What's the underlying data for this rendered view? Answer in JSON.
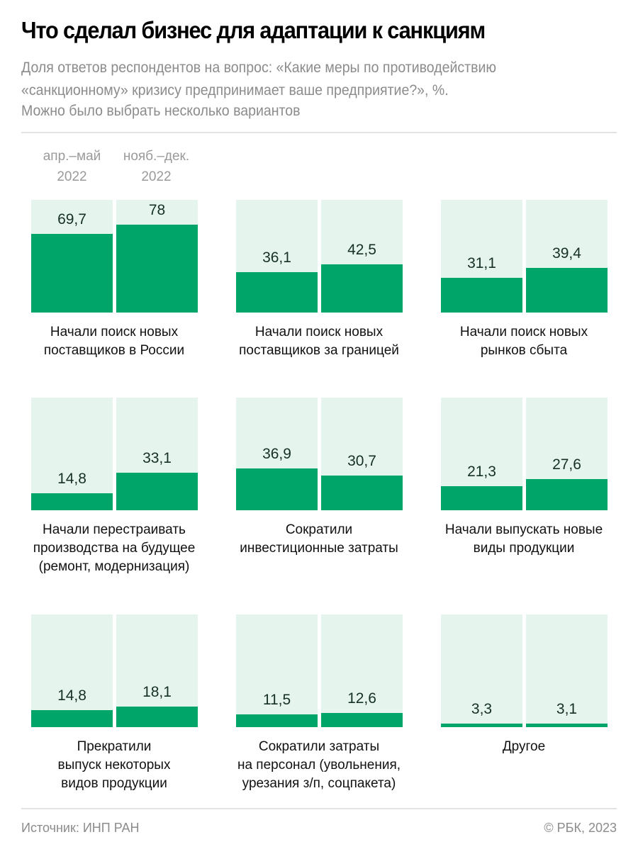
{
  "header": {
    "title": "Что сделал бизнес для адаптации к санкциям",
    "subtitle": "Доля ответов респондентов на вопрос: «Какие меры по противодействию «санкционному» кризису предпринимает ваше предприятие?», %.",
    "note": "Можно было выбрать несколько вариантов"
  },
  "footer": {
    "source": "Источник: ИНП РАН",
    "copyright": "© РБК, 2023"
  },
  "colors": {
    "bar": "#00a569",
    "bar_background": "#e5f5ee",
    "label": "#163026",
    "muted_text": "#8c8c8c"
  },
  "chart_data": {
    "type": "bar",
    "title": "Что сделал бизнес для адаптации к санкциям",
    "ylabel": "%",
    "ylim": [
      0,
      100
    ],
    "grid": false,
    "legend_position": "top-left",
    "series_names": [
      "апр.–май 2022",
      "нояб.–дек. 2022"
    ],
    "legend": [
      {
        "line1": "апр.–май",
        "line2": "2022"
      },
      {
        "line1": "нояб.–дек.",
        "line2": "2022"
      }
    ],
    "categories": [
      "Начали поиск новых поставщиков в России",
      "Начали поиск новых поставщиков за границей",
      "Начали поиск новых рынков сбыта",
      "Начали перестраивать производства на будущее (ремонт, модернизация)",
      "Сократили инвестиционные затраты",
      "Начали выпускать новые виды продукции",
      "Прекратили выпуск некоторых видов продукции",
      "Сократили затраты на персонал (увольнения, урезания з/п, соцпакета)",
      "Другое"
    ],
    "panels": [
      {
        "label_lines": [
          "Начали поиск новых",
          "поставщиков в России"
        ],
        "values": [
          69.7,
          78
        ],
        "value_labels": [
          "69,7",
          "78"
        ]
      },
      {
        "label_lines": [
          "Начали поиск новых",
          "поставщиков за границей"
        ],
        "values": [
          36.1,
          42.5
        ],
        "value_labels": [
          "36,1",
          "42,5"
        ]
      },
      {
        "label_lines": [
          "Начали поиск новых",
          "рынков сбыта"
        ],
        "values": [
          31.1,
          39.4
        ],
        "value_labels": [
          "31,1",
          "39,4"
        ]
      },
      {
        "label_lines": [
          "Начали перестраивать",
          "производства на будущее",
          "(ремонт, модернизация)"
        ],
        "values": [
          14.8,
          33.1
        ],
        "value_labels": [
          "14,8",
          "33,1"
        ]
      },
      {
        "label_lines": [
          "Сократили",
          "инвестиционные затраты"
        ],
        "values": [
          36.9,
          30.7
        ],
        "value_labels": [
          "36,9",
          "30,7"
        ]
      },
      {
        "label_lines": [
          "Начали выпускать новые",
          "виды продукции"
        ],
        "values": [
          21.3,
          27.6
        ],
        "value_labels": [
          "21,3",
          "27,6"
        ]
      },
      {
        "label_lines": [
          "Прекратили",
          "выпуск некоторых",
          "видов продукции"
        ],
        "values": [
          14.8,
          18.1
        ],
        "value_labels": [
          "14,8",
          "18,1"
        ]
      },
      {
        "label_lines": [
          "Сократили затраты",
          "на персонал (увольнения,",
          "урезания з/п, соцпакета)"
        ],
        "values": [
          11.5,
          12.6
        ],
        "value_labels": [
          "11,5",
          "12,6"
        ]
      },
      {
        "label_lines": [
          "Другое"
        ],
        "values": [
          3.3,
          3.1
        ],
        "value_labels": [
          "3,3",
          "3,1"
        ]
      }
    ],
    "series": [
      {
        "name": "апр.–май 2022",
        "values": [
          69.7,
          36.1,
          31.1,
          14.8,
          36.9,
          21.3,
          14.8,
          11.5,
          3.3
        ]
      },
      {
        "name": "нояб.–дек. 2022",
        "values": [
          78,
          42.5,
          39.4,
          33.1,
          30.7,
          27.6,
          18.1,
          12.6,
          3.1
        ]
      }
    ]
  }
}
